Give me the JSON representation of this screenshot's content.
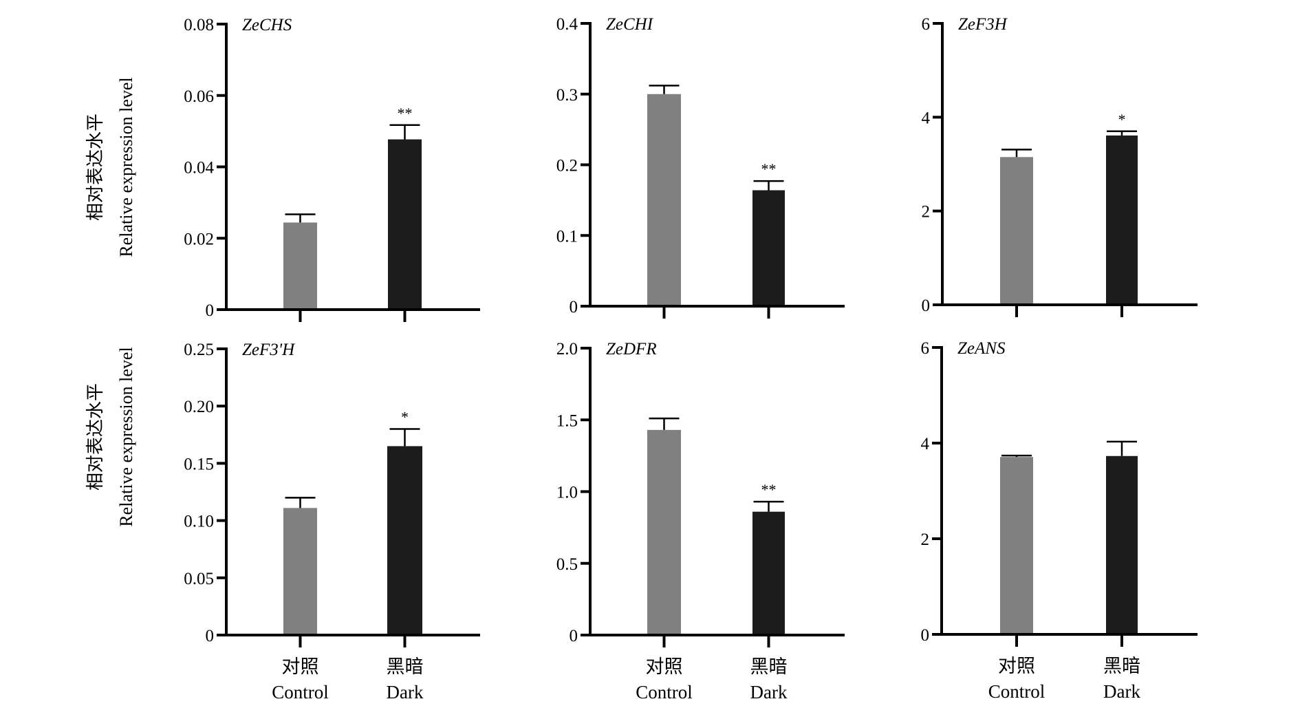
{
  "chart_data": [
    {
      "type": "bar",
      "title": "ZeCHS",
      "categories": [
        "Control",
        "Dark"
      ],
      "values": [
        0.0244,
        0.0477
      ],
      "errors": [
        0.0023,
        0.004
      ],
      "significance": [
        "",
        "**"
      ],
      "ylim": [
        0,
        0.08
      ],
      "yticks": [
        "0",
        "0.02",
        "0.04",
        "0.06",
        "0.08"
      ],
      "ytick_values": [
        0,
        0.02,
        0.04,
        0.06,
        0.08
      ]
    },
    {
      "type": "bar",
      "title": "ZeCHI",
      "categories": [
        "Control",
        "Dark"
      ],
      "values": [
        0.3,
        0.164
      ],
      "errors": [
        0.012,
        0.013
      ],
      "significance": [
        "",
        "**"
      ],
      "ylim": [
        0,
        0.4
      ],
      "yticks": [
        "0",
        "0.1",
        "0.2",
        "0.3",
        "0.4"
      ],
      "ytick_values": [
        0,
        0.1,
        0.2,
        0.3,
        0.4
      ]
    },
    {
      "type": "bar",
      "title": "ZeF3H",
      "categories": [
        "Control",
        "Dark"
      ],
      "values": [
        3.15,
        3.61
      ],
      "errors": [
        0.16,
        0.09
      ],
      "significance": [
        "",
        "*"
      ],
      "ylim": [
        0,
        6
      ],
      "yticks": [
        "0",
        "2",
        "4",
        "6"
      ],
      "ytick_values": [
        0,
        2,
        4,
        6
      ]
    },
    {
      "type": "bar",
      "title": "ZeF3'H",
      "categories": [
        "Control",
        "Dark"
      ],
      "values": [
        0.111,
        0.165
      ],
      "errors": [
        0.009,
        0.015
      ],
      "significance": [
        "",
        "*"
      ],
      "ylim": [
        0,
        0.25
      ],
      "yticks": [
        "0",
        "0.05",
        "0.10",
        "0.15",
        "0.20",
        "0.25"
      ],
      "ytick_values": [
        0,
        0.05,
        0.1,
        0.15,
        0.2,
        0.25
      ]
    },
    {
      "type": "bar",
      "title": "ZeDFR",
      "categories": [
        "Control",
        "Dark"
      ],
      "values": [
        1.43,
        0.86
      ],
      "errors": [
        0.08,
        0.07
      ],
      "significance": [
        "",
        "**"
      ],
      "ylim": [
        0,
        2.0
      ],
      "yticks": [
        "0",
        "0.5",
        "1.0",
        "1.5",
        "2.0"
      ],
      "ytick_values": [
        0,
        0.5,
        1.0,
        1.5,
        2.0
      ]
    },
    {
      "type": "bar",
      "title": "ZeANS",
      "categories": [
        "Control",
        "Dark"
      ],
      "values": [
        3.71,
        3.73
      ],
      "errors": [
        0.03,
        0.3
      ],
      "significance": [
        "",
        ""
      ],
      "ylim": [
        0,
        6
      ],
      "yticks": [
        "0",
        "2",
        "4",
        "6"
      ],
      "ytick_values": [
        0,
        2,
        4,
        6
      ]
    }
  ],
  "ylabel": {
    "zh": "相对表达水平",
    "en": "Relative expression level"
  },
  "xcategories": [
    {
      "zh": "对照",
      "en": "Control"
    },
    {
      "zh": "黑暗",
      "en": "Dark"
    }
  ],
  "colors": {
    "control": "#808080",
    "dark": "#1c1c1c",
    "axis": "#000000"
  }
}
